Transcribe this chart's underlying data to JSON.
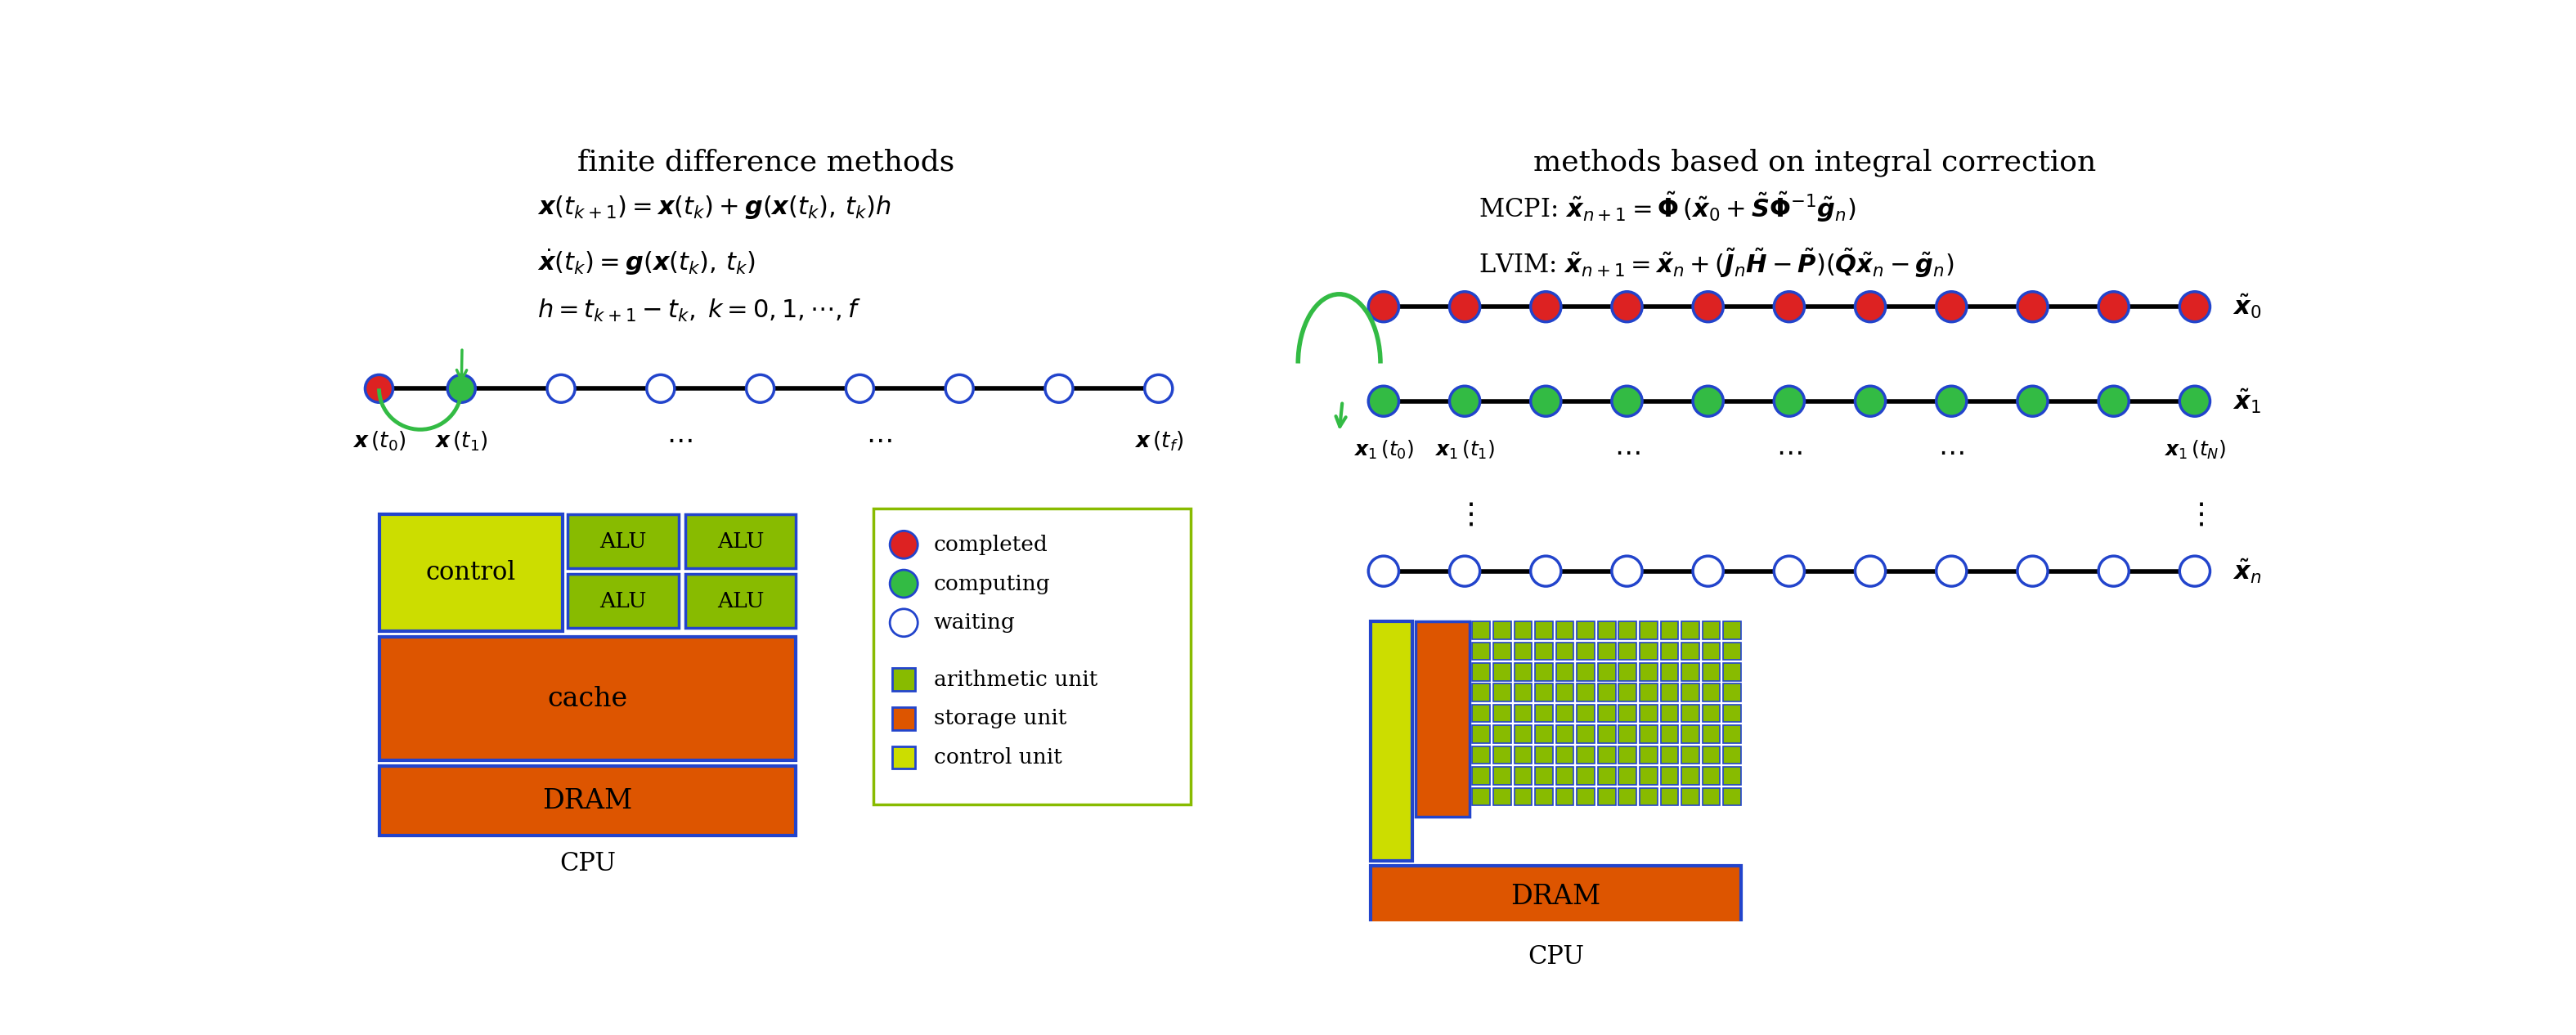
{
  "title_left": "finite difference methods",
  "title_right": "methods based on integral correction",
  "eq1": "$\\boldsymbol{x}(t_{k+1}) = \\boldsymbol{x}(t_k) + \\boldsymbol{g}(\\boldsymbol{x}(t_k),\\, t_k)h$",
  "eq2": "$\\dot{\\boldsymbol{x}}(t_k) = \\boldsymbol{g}(\\boldsymbol{x}(t_k),\\, t_k)$",
  "eq3": "$h = t_{k+1} - t_k,\\; k = 0, 1, \\cdots, f$",
  "eq_mcpi": "MCPI: $\\tilde{\\boldsymbol{x}}_{n+1} = \\tilde{\\boldsymbol{\\Phi}}\\,(\\tilde{\\boldsymbol{x}}_0 + \\tilde{\\boldsymbol{S}}\\tilde{\\boldsymbol{\\Phi}}^{-1}\\tilde{\\boldsymbol{g}}_n)$",
  "eq_lvim": "LVIM: $\\tilde{\\boldsymbol{x}}_{n+1} = \\tilde{\\boldsymbol{x}}_n + (\\tilde{\\boldsymbol{J}}_n\\tilde{\\boldsymbol{H}} - \\tilde{\\boldsymbol{P}})(\\tilde{\\boldsymbol{Q}}\\tilde{\\boldsymbol{x}}_n - \\tilde{\\boldsymbol{g}}_n)$",
  "color_red": "#dd2222",
  "color_green_node": "#33bb44",
  "color_green_alu": "#88bb00",
  "color_orange": "#dd5500",
  "color_yellow": "#ccdd00",
  "color_blue_border": "#2244cc",
  "bg_color": "#ffffff"
}
